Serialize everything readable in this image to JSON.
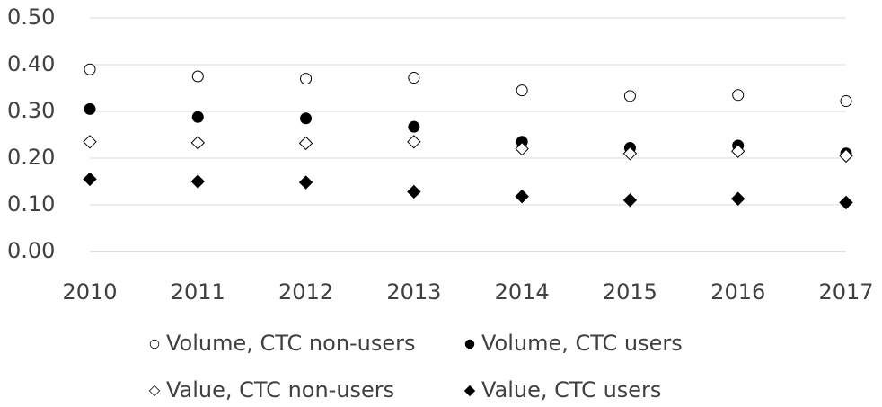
{
  "chart_data": {
    "type": "scatter",
    "x": [
      2010,
      2011,
      2012,
      2013,
      2014,
      2015,
      2016,
      2017
    ],
    "xlim": [
      2010,
      2017
    ],
    "xticks": [
      2010,
      2011,
      2012,
      2013,
      2014,
      2015,
      2016,
      2017
    ],
    "ylim": [
      0,
      0.5
    ],
    "yticks": [
      {
        "value": 0,
        "label": "0.00"
      },
      {
        "value": 0.1,
        "label": "0.10"
      },
      {
        "value": 0.2,
        "label": "0.20"
      },
      {
        "value": 0.3,
        "label": "0.30"
      },
      {
        "value": 0.4,
        "label": "0.40"
      },
      {
        "value": 0.5,
        "label": "0.50"
      }
    ],
    "grid": true,
    "legend": "bottom",
    "series": [
      {
        "name": "Volume, CTC non-users",
        "marker": "circle",
        "filled": false,
        "color": "#000000",
        "values": [
          0.39,
          0.375,
          0.37,
          0.372,
          0.345,
          0.333,
          0.335,
          0.322
        ]
      },
      {
        "name": "Volume, CTC users",
        "marker": "circle",
        "filled": true,
        "color": "#000000",
        "values": [
          0.305,
          0.288,
          0.285,
          0.267,
          0.235,
          0.222,
          0.227,
          0.21
        ]
      },
      {
        "name": "Value, CTC non-users",
        "marker": "diamond",
        "filled": false,
        "color": "#000000",
        "values": [
          0.235,
          0.233,
          0.232,
          0.235,
          0.22,
          0.21,
          0.215,
          0.205
        ]
      },
      {
        "name": "Value, CTC users",
        "marker": "diamond",
        "filled": true,
        "color": "#000000",
        "values": [
          0.155,
          0.15,
          0.148,
          0.128,
          0.118,
          0.11,
          0.113,
          0.105
        ]
      }
    ]
  }
}
